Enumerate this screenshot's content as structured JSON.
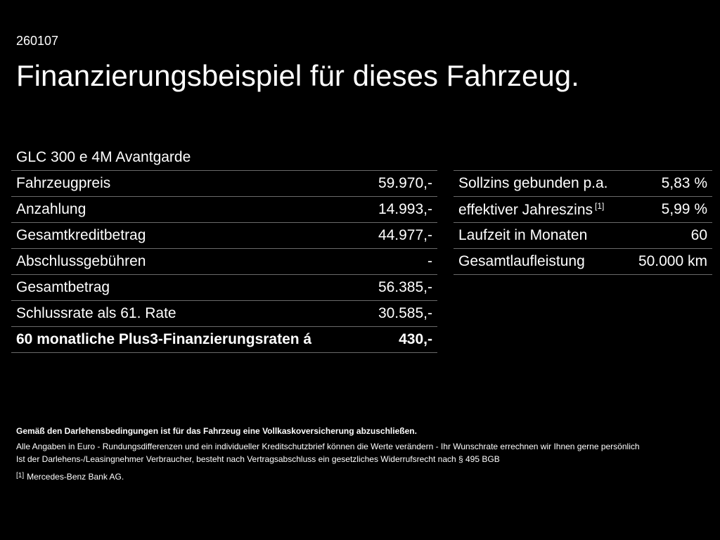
{
  "ref_id": "260107",
  "headline": "Finanzierungsbeispiel für dieses Fahrzeug.",
  "model": "GLC 300 e 4M Avantgarde",
  "left_rows": [
    {
      "label": "Fahrzeugpreis",
      "value": "59.970,-"
    },
    {
      "label": "Anzahlung",
      "value": "14.993,-"
    },
    {
      "label": "Gesamtkreditbetrag",
      "value": "44.977,-"
    },
    {
      "label": "Abschlussgebühren",
      "value": "-"
    },
    {
      "label": "Gesamtbetrag",
      "value": "56.385,-"
    },
    {
      "label": "Schlussrate als 61. Rate",
      "value": "30.585,-"
    },
    {
      "label": "60 monatliche Plus3-Finanzierungsraten á",
      "value": "430,-"
    }
  ],
  "right_rows": [
    {
      "label": "Sollzins gebunden p.a.",
      "value": "5,83 %",
      "footnote": ""
    },
    {
      "label": "effektiver Jahreszins",
      "value": "5,99 %",
      "footnote": "[1]"
    },
    {
      "label": "Laufzeit in Monaten",
      "value": "60",
      "footnote": ""
    },
    {
      "label": "Gesamtlaufleistung",
      "value": "50.000 km",
      "footnote": ""
    }
  ],
  "footer": {
    "bold_note": "Gemäß den Darlehensbedingungen ist für das Fahrzeug eine Vollkaskoversicherung abzuschließen.",
    "line1": "Alle Angaben in Euro - Rundungsdifferenzen und ein individueller Kreditschutzbrief können die Werte verändern - Ihr Wunschrate errechnen wir Ihnen gerne persönlich",
    "line2": "Ist der Darlehens-/Leasingnehmer Verbraucher, besteht nach Vertragsabschluss ein gesetzliches Widerrufsrecht nach § 495 BGB",
    "footnote_mark": "[1]",
    "footnote_text": "Mercedes-Benz Bank AG."
  }
}
